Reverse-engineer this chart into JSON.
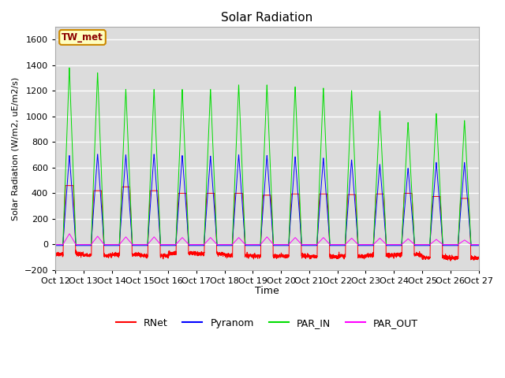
{
  "title": "Solar Radiation",
  "ylabel": "Solar Radiation (W/m2, uE/m2/s)",
  "xlabel": "Time",
  "ylim": [
    -200,
    1700
  ],
  "yticks": [
    -200,
    0,
    200,
    400,
    600,
    800,
    1000,
    1200,
    1400,
    1600
  ],
  "num_days": 15,
  "colors": {
    "RNet": "#ff0000",
    "Pyranom": "#0000ff",
    "PAR_IN": "#00dd00",
    "PAR_OUT": "#ff00ff"
  },
  "legend_label": "TW_met",
  "plot_bg": "#dcdcdc",
  "PAR_IN_peaks": [
    1390,
    1350,
    1220,
    1220,
    1220,
    1220,
    1255,
    1255,
    1240,
    1230,
    1210,
    1050,
    960,
    1030,
    975
  ],
  "Pyranom_peaks": [
    700,
    710,
    705,
    710,
    700,
    695,
    705,
    700,
    690,
    680,
    665,
    630,
    600,
    645,
    645
  ],
  "RNet_peaks": [
    460,
    420,
    450,
    420,
    400,
    400,
    400,
    385,
    395,
    395,
    390,
    395,
    400,
    375,
    360
  ],
  "RNet_neg": [
    -75,
    -85,
    -80,
    -90,
    -70,
    -75,
    -85,
    -90,
    -90,
    -95,
    -90,
    -85,
    -80,
    -100,
    -105
  ],
  "PAR_OUT_peaks": [
    85,
    65,
    60,
    60,
    55,
    55,
    55,
    60,
    55,
    55,
    50,
    50,
    45,
    40,
    35
  ],
  "tick_labels": [
    "Oct 12",
    "Oct 13",
    "Oct 14",
    "Oct 15",
    "Oct 16",
    "Oct 17",
    "Oct 18",
    "Oct 19",
    "Oct 20",
    "Oct 21",
    "Oct 22",
    "Oct 23",
    "Oct 24",
    "Oct 25",
    "Oct 26",
    "Oct 27"
  ]
}
